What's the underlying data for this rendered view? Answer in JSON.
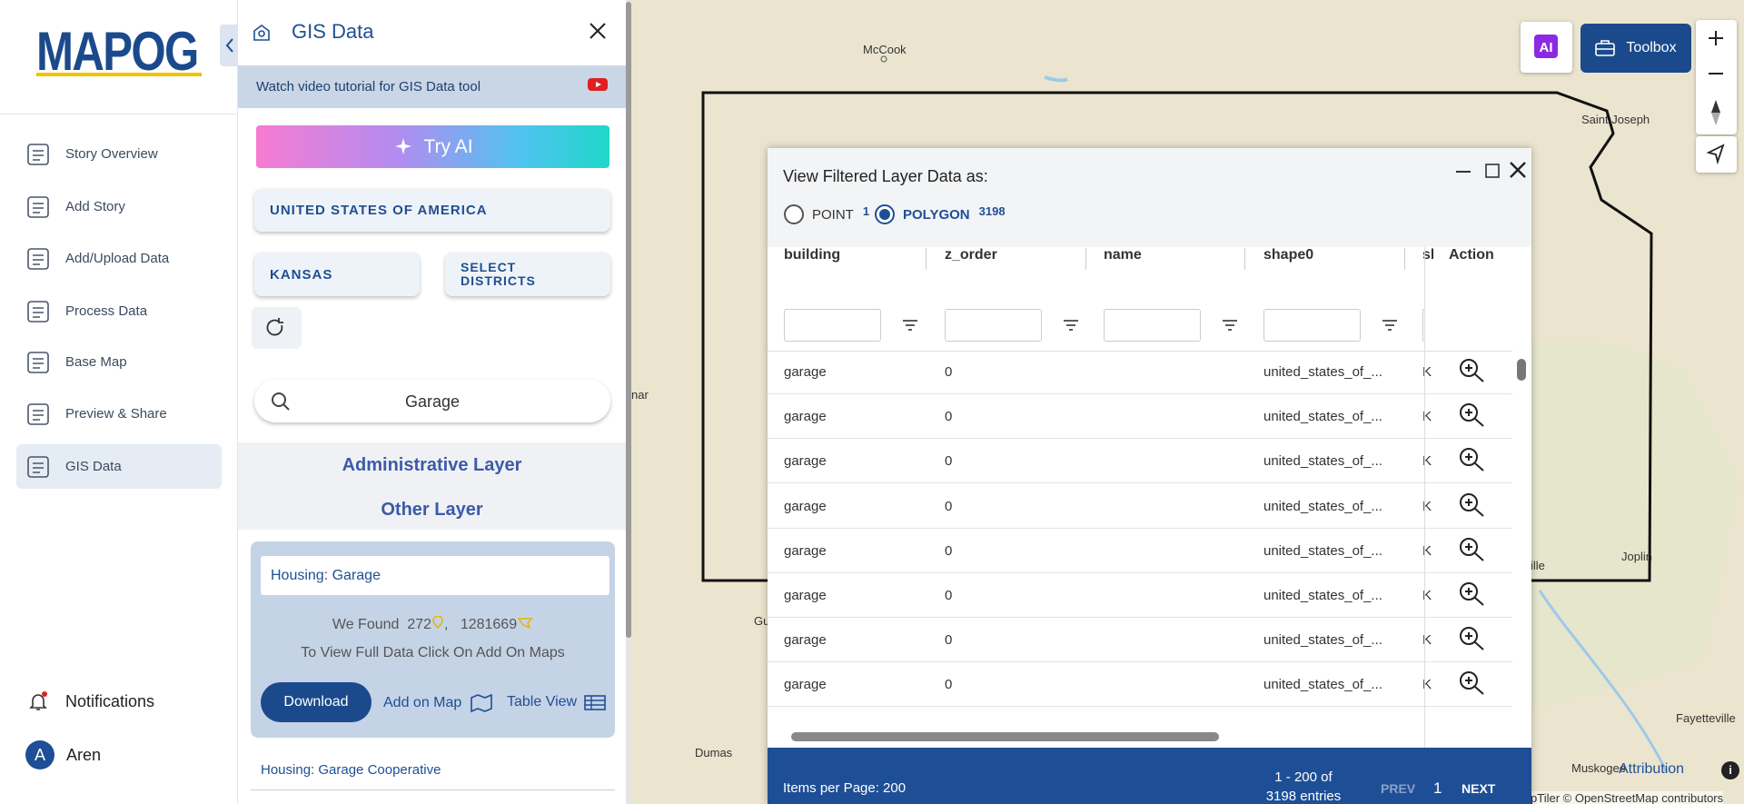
{
  "sidebar": {
    "logo": "MAPOG",
    "nav": [
      "Story Overview",
      "Add Story",
      "Add/Upload Data",
      "Process Data",
      "Base Map",
      "Preview & Share",
      "GIS Data"
    ],
    "notifications": "Notifications",
    "user_initial": "A",
    "user": "Aren"
  },
  "panel": {
    "title": "GIS Data",
    "tutorial": "Watch video tutorial for GIS Data tool",
    "try_ai": "Try AI",
    "country": "UNITED STATES OF AMERICA",
    "state": "KANSAS",
    "districts": "SELECT DISTRICTS",
    "search": "Garage",
    "admin_layer": "Administrative Layer",
    "other_layer": "Other Layer",
    "card": {
      "title": "Housing: Garage",
      "found": "We Found",
      "points": 272,
      "separator": ",",
      "polygons": 1281669,
      "note": "To View Full Data Click On Add On Maps",
      "download": "Download",
      "add_on_map": "Add on Map",
      "table_view": "Table View"
    },
    "next_item": "Housing: Garage Cooperative"
  },
  "map": {
    "labels": [
      "McCook",
      "Saint Joseph",
      "Joplin",
      "Fayetteville",
      "Dumas",
      "Muskogee",
      "nar",
      "Gu",
      "ille"
    ],
    "toolbox": "Toolbox",
    "attribution": "Attribution",
    "copyright": "pTiler © OpenStreetMap contributors"
  },
  "table_window": {
    "heading": "View Filtered Layer Data as:",
    "options": [
      {
        "label": "POINT",
        "count": 1
      },
      {
        "label": "POLYGON",
        "count": 3198
      }
    ],
    "columns": [
      "building",
      "z_order",
      "name",
      "shape0",
      "sl"
    ],
    "action": "Action",
    "rows": [
      {
        "building": "garage",
        "z_order": "0",
        "shape0": "united_states_of_...",
        "sl": "K"
      },
      {
        "building": "garage",
        "z_order": "0",
        "shape0": "united_states_of_...",
        "sl": "K"
      },
      {
        "building": "garage",
        "z_order": "0",
        "shape0": "united_states_of_...",
        "sl": "K"
      },
      {
        "building": "garage",
        "z_order": "0",
        "shape0": "united_states_of_...",
        "sl": "K"
      },
      {
        "building": "garage",
        "z_order": "0",
        "shape0": "united_states_of_...",
        "sl": "K"
      },
      {
        "building": "garage",
        "z_order": "0",
        "shape0": "united_states_of_...",
        "sl": "K"
      },
      {
        "building": "garage",
        "z_order": "0",
        "shape0": "united_states_of_...",
        "sl": "K"
      },
      {
        "building": "garage",
        "z_order": "0",
        "shape0": "united_states_of_...",
        "sl": "K"
      }
    ],
    "footer": {
      "items_per_page": "Items per Page: 200",
      "range": "1 - 200 of",
      "entries": "3198 entries",
      "prev": "PREV",
      "page": 1,
      "next": "NEXT"
    }
  }
}
